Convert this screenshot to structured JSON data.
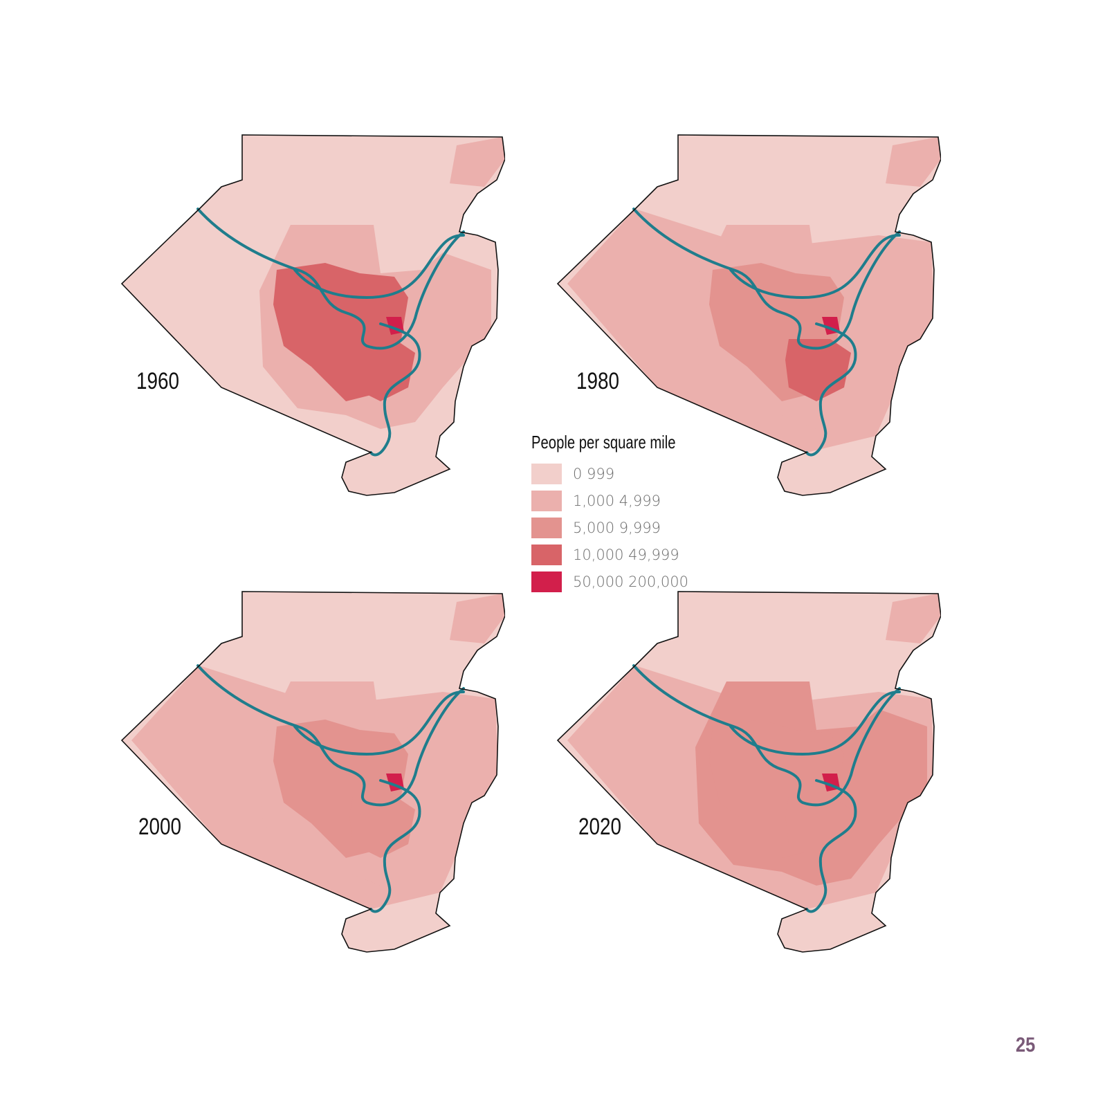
{
  "maps": [
    {
      "year": "1960"
    },
    {
      "year": "1980"
    },
    {
      "year": "2000"
    },
    {
      "year": "2020"
    }
  ],
  "legend": {
    "title": "People per square mile",
    "classes": [
      {
        "label": "0   999",
        "color": "#f2cfcb"
      },
      {
        "label": "1,000   4,999",
        "color": "#ebb0ad"
      },
      {
        "label": "5,000   9,999",
        "color": "#e3938f"
      },
      {
        "label": "10,000   49,999",
        "color": "#d86468"
      },
      {
        "label": "50,000   200,000",
        "color": "#d21f4b"
      }
    ]
  },
  "colors": {
    "river": "#1f7d8c",
    "outline": "#111111",
    "page_number": "#7a5a78"
  },
  "page_number": "25"
}
